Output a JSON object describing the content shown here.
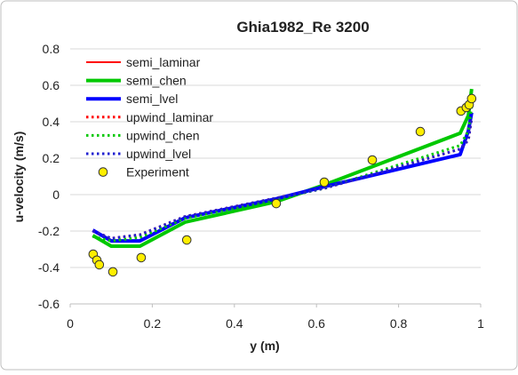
{
  "chart_data": {
    "type": "line",
    "title": "Ghia1982_Re 3200",
    "x_label": "y (m)",
    "y_label": "u-velocity (m/s)",
    "xlim": [
      0,
      1
    ],
    "xticks": [
      0,
      0.2,
      0.4,
      0.6,
      0.8,
      1
    ],
    "ylim": [
      -0.6,
      0.8
    ],
    "yticks": [
      -0.6,
      -0.4,
      -0.2,
      0,
      0.2,
      0.4,
      0.6,
      0.8
    ],
    "grid": true,
    "legend": "upper-left",
    "series": [
      {
        "name": "semi_laminar",
        "color": "#ff0000",
        "style": "solid",
        "width": 2,
        "x": [
          0.055,
          0.1,
          0.17,
          0.28,
          0.5,
          0.62,
          0.95,
          0.97,
          0.978
        ],
        "values": [
          -0.2,
          -0.255,
          -0.255,
          -0.13,
          -0.025,
          0.044,
          0.22,
          0.35,
          0.45
        ]
      },
      {
        "name": "semi_chen",
        "color": "#00c800",
        "style": "solid",
        "width": 4,
        "x": [
          0.055,
          0.1,
          0.17,
          0.28,
          0.5,
          0.62,
          0.95,
          0.97,
          0.978
        ],
        "values": [
          -0.224,
          -0.283,
          -0.283,
          -0.151,
          -0.04,
          0.054,
          0.337,
          0.434,
          0.58
        ]
      },
      {
        "name": "semi_lvel",
        "color": "#0000ff",
        "style": "solid",
        "width": 4,
        "x": [
          0.055,
          0.1,
          0.17,
          0.28,
          0.5,
          0.62,
          0.95,
          0.97,
          0.978
        ],
        "values": [
          -0.195,
          -0.254,
          -0.254,
          -0.127,
          -0.024,
          0.044,
          0.22,
          0.35,
          0.45
        ]
      },
      {
        "name": "upwind_laminar",
        "color": "#ff0000",
        "style": "dotted",
        "width": 3,
        "x": [
          0.055,
          0.1,
          0.17,
          0.28,
          0.5,
          0.62,
          0.95,
          0.97,
          0.978
        ],
        "values": [
          -0.2,
          -0.24,
          -0.22,
          -0.12,
          -0.02,
          0.035,
          0.25,
          0.3,
          0.42
        ]
      },
      {
        "name": "upwind_chen",
        "color": "#00c800",
        "style": "dotted",
        "width": 3,
        "x": [
          0.055,
          0.1,
          0.17,
          0.28,
          0.5,
          0.62,
          0.95,
          0.97,
          0.978
        ],
        "values": [
          -0.23,
          -0.255,
          -0.235,
          -0.13,
          -0.025,
          0.035,
          0.27,
          0.35,
          0.48
        ]
      },
      {
        "name": "upwind_lvel",
        "color": "#2020d0",
        "style": "dotted",
        "width": 3,
        "x": [
          0.055,
          0.1,
          0.17,
          0.28,
          0.5,
          0.62,
          0.95,
          0.97,
          0.978
        ],
        "values": [
          -0.2,
          -0.24,
          -0.22,
          -0.12,
          -0.02,
          0.035,
          0.25,
          0.3,
          0.42
        ]
      },
      {
        "name": "Experiment",
        "color": "#ffee00",
        "style": "marker",
        "x": [
          0.056,
          0.065,
          0.071,
          0.104,
          0.173,
          0.284,
          0.502,
          0.619,
          0.736,
          0.853,
          0.952,
          0.965,
          0.972,
          0.978
        ],
        "values": [
          -0.327,
          -0.36,
          -0.385,
          -0.424,
          -0.346,
          -0.249,
          -0.049,
          0.068,
          0.19,
          0.346,
          0.459,
          0.478,
          0.493,
          0.527
        ]
      }
    ]
  }
}
